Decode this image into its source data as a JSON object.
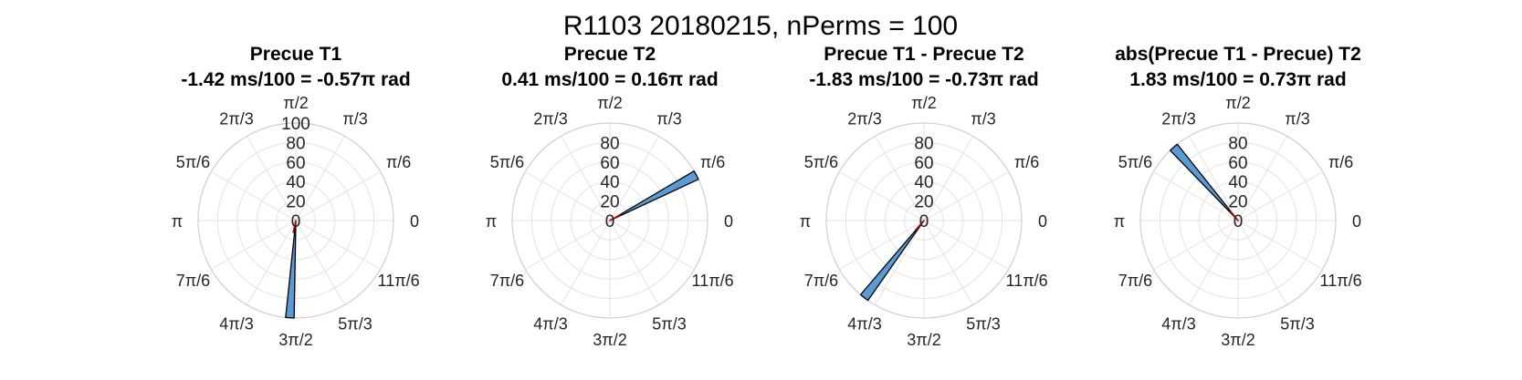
{
  "figure_title": "R1103 20180215, nPerms = 100",
  "chart_data": [
    {
      "type": "polar_histogram",
      "title": "Precue T1",
      "subtitle": "-1.42 ms/100 = -0.57π rad",
      "theta_ticks": [
        "0",
        "π/6",
        "π/3",
        "π/2",
        "2π/3",
        "5π/6",
        "π",
        "7π/6",
        "4π/3",
        "3π/2",
        "5π/3",
        "11π/6"
      ],
      "r_ticks": [
        "0",
        "20",
        "40",
        "60",
        "80",
        "100"
      ],
      "rlim": [
        0,
        100
      ],
      "bin_start_deg": 264.0,
      "bin_end_deg": 269.0,
      "count": 100,
      "mean_angle_pi": -0.57,
      "bar_color": "#5b9bd5",
      "line_color": "#c00000",
      "grid": true
    },
    {
      "type": "polar_histogram",
      "title": "Precue T2",
      "subtitle": "0.41 ms/100 = 0.16π rad",
      "theta_ticks": [
        "0",
        "π/6",
        "π/3",
        "π/2",
        "2π/3",
        "5π/6",
        "π",
        "7π/6",
        "4π/3",
        "3π/2",
        "5π/3",
        "11π/6"
      ],
      "r_ticks": [
        "0",
        "20",
        "40",
        "60",
        "80"
      ],
      "rlim": [
        0,
        100
      ],
      "bin_start_deg": 25.0,
      "bin_end_deg": 30.5,
      "count": 100,
      "mean_angle_pi": 0.16,
      "bar_color": "#5b9bd5",
      "line_color": "#c00000",
      "grid": true
    },
    {
      "type": "polar_histogram",
      "title": "Precue T1 - Precue T2",
      "subtitle": "-1.83 ms/100 = -0.73π rad",
      "theta_ticks": [
        "0",
        "π/6",
        "π/3",
        "π/2",
        "2π/3",
        "5π/6",
        "π",
        "7π/6",
        "4π/3",
        "3π/2",
        "5π/3",
        "11π/6"
      ],
      "r_ticks": [
        "0",
        "20",
        "40",
        "60",
        "80"
      ],
      "rlim": [
        0,
        100
      ],
      "bin_start_deg": 229.5,
      "bin_end_deg": 235.0,
      "count": 100,
      "mean_angle_pi": -0.73,
      "bar_color": "#5b9bd5",
      "line_color": "#c00000",
      "grid": true
    },
    {
      "type": "polar_histogram",
      "title": "abs(Precue T1 - Precue) T2",
      "subtitle": "1.83 ms/100 = 0.73π rad",
      "theta_ticks": [
        "0",
        "π/6",
        "π/3",
        "π/2",
        "2π/3",
        "5π/6",
        "π",
        "7π/6",
        "4π/3",
        "3π/2",
        "5π/3",
        "11π/6"
      ],
      "r_ticks": [
        "0",
        "20",
        "40",
        "60",
        "80"
      ],
      "rlim": [
        0,
        100
      ],
      "bin_start_deg": 128.5,
      "bin_end_deg": 134.0,
      "count": 100,
      "mean_angle_pi": 0.73,
      "bar_color": "#5b9bd5",
      "line_color": "#c00000",
      "grid": true
    }
  ]
}
